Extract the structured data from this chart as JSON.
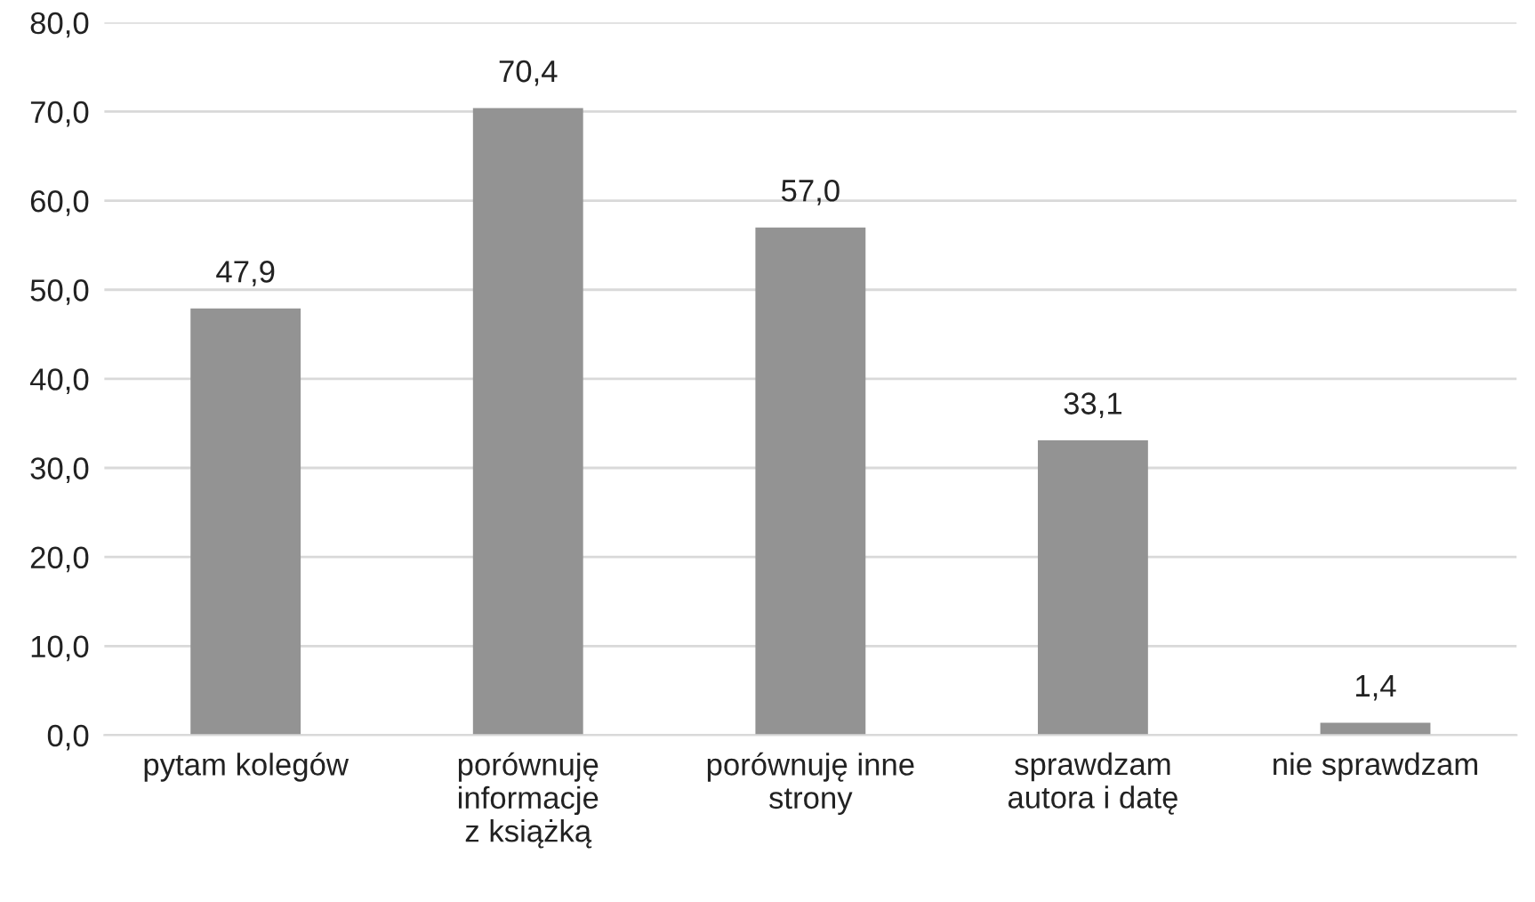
{
  "chart_data": {
    "type": "bar",
    "categories": [
      "pytam kolegów",
      "porównuję\ninformacje\nz książką",
      "porównuję inne\nstrony",
      "sprawdzam\nautora i datę",
      "nie sprawdzam"
    ],
    "values": [
      47.9,
      70.4,
      57.0,
      33.1,
      1.4
    ],
    "value_labels": [
      "47,9",
      "70,4",
      "57,0",
      "33,1",
      "1,4"
    ],
    "color": "#939393",
    "ylim": [
      0,
      80
    ],
    "yticks": [
      {
        "value": 0,
        "label": "0,0"
      },
      {
        "value": 10,
        "label": "10,0"
      },
      {
        "value": 20,
        "label": "20,0"
      },
      {
        "value": 30,
        "label": "30,0"
      },
      {
        "value": 40,
        "label": "40,0"
      },
      {
        "value": 50,
        "label": "50,0"
      },
      {
        "value": 60,
        "label": "60,0"
      },
      {
        "value": 70,
        "label": "70,0"
      },
      {
        "value": 80,
        "label": "80,0"
      }
    ],
    "grid": "y",
    "legend": false
  }
}
